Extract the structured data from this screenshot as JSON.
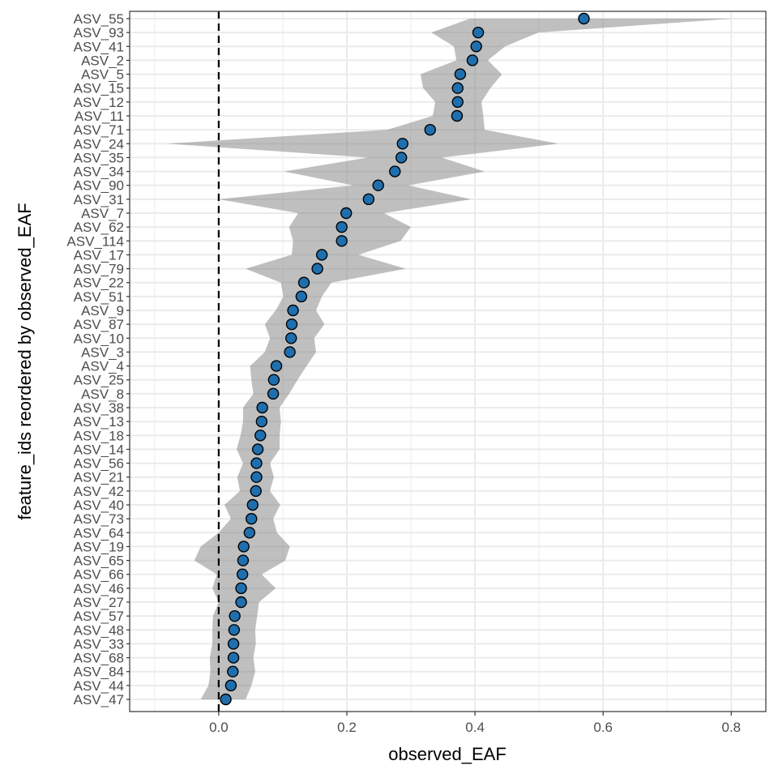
{
  "chart_data": {
    "type": "scatter",
    "title": "",
    "xlabel": "observed_EAF",
    "ylabel": "feature_ids reordered by observed_EAF",
    "xlim": [
      -0.139,
      0.854
    ],
    "xticks": [
      "0.0",
      "0.2",
      "0.4",
      "0.6",
      "0.8"
    ],
    "xtick_values": [
      0,
      0.2,
      0.4,
      0.6,
      0.8
    ],
    "reference_line": {
      "x": 0,
      "style": "dashed"
    },
    "grid": true,
    "point_color": "#1f6fae",
    "ribbon_color": "#7f7f7f",
    "categories": [
      "ASV_55",
      "ASV_93",
      "ASV_41",
      "ASV_2",
      "ASV_5",
      "ASV_15",
      "ASV_12",
      "ASV_11",
      "ASV_71",
      "ASV_24",
      "ASV_35",
      "ASV_34",
      "ASV_90",
      "ASV_31",
      "ASV_7",
      "ASV_62",
      "ASV_114",
      "ASV_17",
      "ASV_79",
      "ASV_22",
      "ASV_51",
      "ASV_9",
      "ASV_87",
      "ASV_10",
      "ASV_3",
      "ASV_4",
      "ASV_25",
      "ASV_8",
      "ASV_38",
      "ASV_13",
      "ASV_18",
      "ASV_14",
      "ASV_56",
      "ASV_21",
      "ASV_42",
      "ASV_40",
      "ASV_73",
      "ASV_64",
      "ASV_19",
      "ASV_65",
      "ASV_66",
      "ASV_46",
      "ASV_27",
      "ASV_57",
      "ASV_48",
      "ASV_33",
      "ASV_68",
      "ASV_84",
      "ASV_44",
      "ASV_47"
    ],
    "values": [
      0.57,
      0.405,
      0.402,
      0.396,
      0.377,
      0.373,
      0.373,
      0.372,
      0.33,
      0.287,
      0.285,
      0.275,
      0.249,
      0.234,
      0.199,
      0.192,
      0.192,
      0.161,
      0.154,
      0.133,
      0.129,
      0.116,
      0.114,
      0.113,
      0.111,
      0.09,
      0.086,
      0.085,
      0.068,
      0.067,
      0.065,
      0.061,
      0.059,
      0.059,
      0.058,
      0.053,
      0.051,
      0.048,
      0.039,
      0.038,
      0.037,
      0.035,
      0.035,
      0.025,
      0.024,
      0.023,
      0.023,
      0.022,
      0.019,
      0.011
    ],
    "lower": [
      0.392,
      0.332,
      0.367,
      0.371,
      0.315,
      0.319,
      0.338,
      0.334,
      0.263,
      -0.081,
      0.233,
      0.102,
      0.21,
      0.0,
      0.124,
      0.11,
      0.116,
      0.114,
      0.042,
      0.097,
      0.101,
      0.089,
      0.072,
      0.08,
      0.072,
      0.049,
      0.051,
      0.054,
      0.038,
      0.038,
      0.034,
      0.028,
      0.038,
      0.029,
      0.033,
      0.009,
      0.019,
      0.0,
      -0.028,
      -0.038,
      -0.003,
      -0.01,
      0.0,
      -0.009,
      -0.01,
      -0.01,
      -0.014,
      -0.013,
      -0.016,
      -0.028
    ],
    "upper": [
      0.803,
      0.499,
      0.447,
      0.42,
      0.442,
      0.424,
      0.41,
      0.413,
      0.415,
      0.53,
      0.348,
      0.415,
      0.296,
      0.394,
      0.258,
      0.3,
      0.284,
      0.218,
      0.292,
      0.176,
      0.161,
      0.152,
      0.165,
      0.149,
      0.152,
      0.137,
      0.123,
      0.11,
      0.095,
      0.097,
      0.095,
      0.095,
      0.08,
      0.086,
      0.08,
      0.096,
      0.085,
      0.091,
      0.111,
      0.104,
      0.067,
      0.089,
      0.063,
      0.06,
      0.057,
      0.058,
      0.054,
      0.057,
      0.051,
      0.042
    ]
  }
}
